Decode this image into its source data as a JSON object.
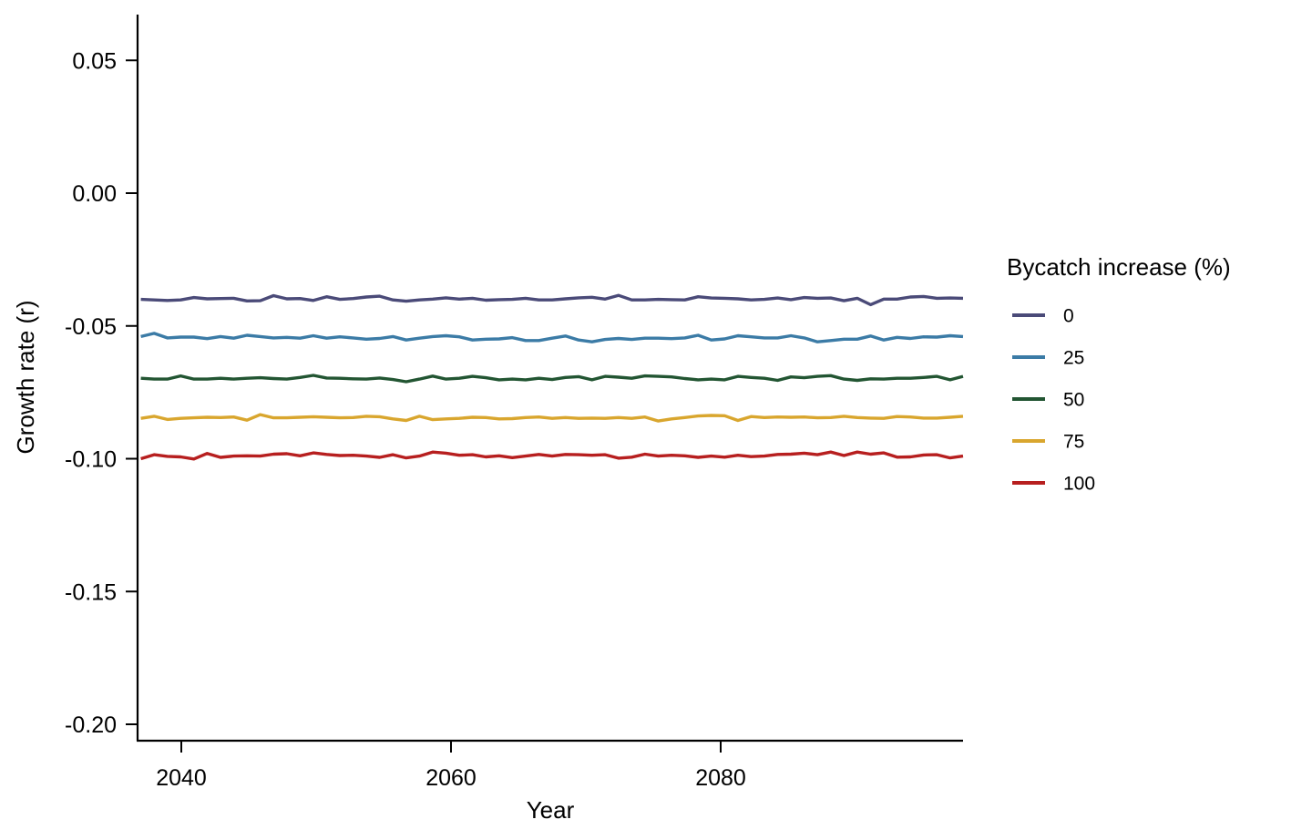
{
  "chart_data": {
    "type": "line",
    "title": "",
    "xlabel": "Year",
    "ylabel": "Growth rate (r)",
    "xlim": [
      2037,
      2098
    ],
    "ylim": [
      -0.205,
      0.067
    ],
    "x_ticks": [
      2040,
      2060,
      2080
    ],
    "y_ticks": [
      0.05,
      0.0,
      -0.05,
      -0.1,
      -0.15,
      -0.2
    ],
    "y_tick_labels": [
      "0.05",
      "0.00",
      "-0.05",
      "-0.10",
      "-0.15",
      "-0.20"
    ],
    "grid": false,
    "legend": {
      "title": "Bycatch increase (%)",
      "placement": "right"
    },
    "x_start": 2037,
    "x_end": 2098,
    "series": [
      {
        "name": "0",
        "color": "#4a4a78",
        "values": [
          -0.04,
          -0.0402,
          -0.0404,
          -0.0402,
          -0.0393,
          -0.0398,
          -0.0397,
          -0.0396,
          -0.0406,
          -0.0405,
          -0.0386,
          -0.0398,
          -0.0397,
          -0.0404,
          -0.039,
          -0.04,
          -0.0397,
          -0.0391,
          -0.0388,
          -0.0402,
          -0.0407,
          -0.0402,
          -0.0399,
          -0.0394,
          -0.0399,
          -0.0396,
          -0.0403,
          -0.0401,
          -0.04,
          -0.0396,
          -0.0402,
          -0.0402,
          -0.0398,
          -0.0394,
          -0.0392,
          -0.0399,
          -0.0385,
          -0.0402,
          -0.0402,
          -0.04,
          -0.0401,
          -0.0402,
          -0.039,
          -0.0395,
          -0.0396,
          -0.0398,
          -0.0402,
          -0.04,
          -0.0395,
          -0.0401,
          -0.0393,
          -0.0396,
          -0.0395,
          -0.0405,
          -0.0396,
          -0.042,
          -0.0399,
          -0.0399,
          -0.0391,
          -0.0389,
          -0.0396,
          -0.0395,
          -0.0396
        ]
      },
      {
        "name": "25",
        "color": "#3b7ba6",
        "values": [
          -0.054,
          -0.0528,
          -0.0545,
          -0.0542,
          -0.0542,
          -0.0548,
          -0.054,
          -0.0546,
          -0.0535,
          -0.054,
          -0.0545,
          -0.0543,
          -0.0546,
          -0.0537,
          -0.0546,
          -0.0541,
          -0.0545,
          -0.055,
          -0.0547,
          -0.054,
          -0.0553,
          -0.0546,
          -0.054,
          -0.0537,
          -0.0541,
          -0.0553,
          -0.055,
          -0.0549,
          -0.0544,
          -0.0555,
          -0.0555,
          -0.0546,
          -0.0538,
          -0.0553,
          -0.056,
          -0.0551,
          -0.0547,
          -0.0551,
          -0.0546,
          -0.0546,
          -0.0548,
          -0.0545,
          -0.0535,
          -0.0553,
          -0.0549,
          -0.0537,
          -0.0541,
          -0.0545,
          -0.0545,
          -0.0537,
          -0.0545,
          -0.056,
          -0.0555,
          -0.055,
          -0.055,
          -0.0538,
          -0.0553,
          -0.0543,
          -0.0547,
          -0.0541,
          -0.0542,
          -0.0537,
          -0.054
        ]
      },
      {
        "name": "50",
        "color": "#225532",
        "values": [
          -0.0697,
          -0.07,
          -0.07,
          -0.0688,
          -0.07,
          -0.07,
          -0.0697,
          -0.07,
          -0.0697,
          -0.0695,
          -0.0698,
          -0.07,
          -0.0694,
          -0.0686,
          -0.0696,
          -0.0697,
          -0.0699,
          -0.07,
          -0.0696,
          -0.0702,
          -0.071,
          -0.07,
          -0.0689,
          -0.07,
          -0.0697,
          -0.069,
          -0.0695,
          -0.0703,
          -0.07,
          -0.0703,
          -0.0697,
          -0.0702,
          -0.0694,
          -0.0691,
          -0.0703,
          -0.069,
          -0.0693,
          -0.0697,
          -0.0688,
          -0.069,
          -0.0692,
          -0.0698,
          -0.0703,
          -0.07,
          -0.0703,
          -0.069,
          -0.0694,
          -0.0697,
          -0.0705,
          -0.0692,
          -0.0695,
          -0.069,
          -0.0687,
          -0.07,
          -0.0705,
          -0.0699,
          -0.07,
          -0.0697,
          -0.0697,
          -0.0694,
          -0.069,
          -0.0703,
          -0.069
        ]
      },
      {
        "name": "75",
        "color": "#d9a62e",
        "values": [
          -0.0848,
          -0.084,
          -0.0852,
          -0.0848,
          -0.0846,
          -0.0844,
          -0.0845,
          -0.0843,
          -0.0855,
          -0.0834,
          -0.0846,
          -0.0846,
          -0.0844,
          -0.0842,
          -0.0844,
          -0.0846,
          -0.0845,
          -0.084,
          -0.0842,
          -0.085,
          -0.0856,
          -0.084,
          -0.0853,
          -0.085,
          -0.0848,
          -0.0844,
          -0.0845,
          -0.085,
          -0.0849,
          -0.0845,
          -0.0843,
          -0.0848,
          -0.0845,
          -0.0848,
          -0.0847,
          -0.0848,
          -0.0845,
          -0.0848,
          -0.0843,
          -0.0858,
          -0.085,
          -0.0845,
          -0.0839,
          -0.0837,
          -0.0838,
          -0.0856,
          -0.0841,
          -0.0845,
          -0.0843,
          -0.0844,
          -0.0843,
          -0.0846,
          -0.0845,
          -0.084,
          -0.0845,
          -0.0847,
          -0.0848,
          -0.0841,
          -0.0843,
          -0.0847,
          -0.0847,
          -0.0844,
          -0.084
        ]
      },
      {
        "name": "100",
        "color": "#b71f1f",
        "values": [
          -0.1,
          -0.0985,
          -0.0991,
          -0.0993,
          -0.1001,
          -0.098,
          -0.0995,
          -0.099,
          -0.0989,
          -0.099,
          -0.0983,
          -0.0981,
          -0.0989,
          -0.0978,
          -0.0984,
          -0.0988,
          -0.0987,
          -0.099,
          -0.0995,
          -0.0985,
          -0.0997,
          -0.099,
          -0.0975,
          -0.0979,
          -0.0987,
          -0.0985,
          -0.0993,
          -0.0989,
          -0.0996,
          -0.099,
          -0.0984,
          -0.099,
          -0.0984,
          -0.0985,
          -0.0987,
          -0.0985,
          -0.0998,
          -0.0994,
          -0.0983,
          -0.099,
          -0.0987,
          -0.0989,
          -0.0995,
          -0.099,
          -0.0994,
          -0.0987,
          -0.0992,
          -0.099,
          -0.0984,
          -0.0983,
          -0.0979,
          -0.0985,
          -0.0975,
          -0.0988,
          -0.0975,
          -0.0983,
          -0.0978,
          -0.0994,
          -0.0993,
          -0.0986,
          -0.0985,
          -0.0997,
          -0.099
        ]
      }
    ]
  }
}
